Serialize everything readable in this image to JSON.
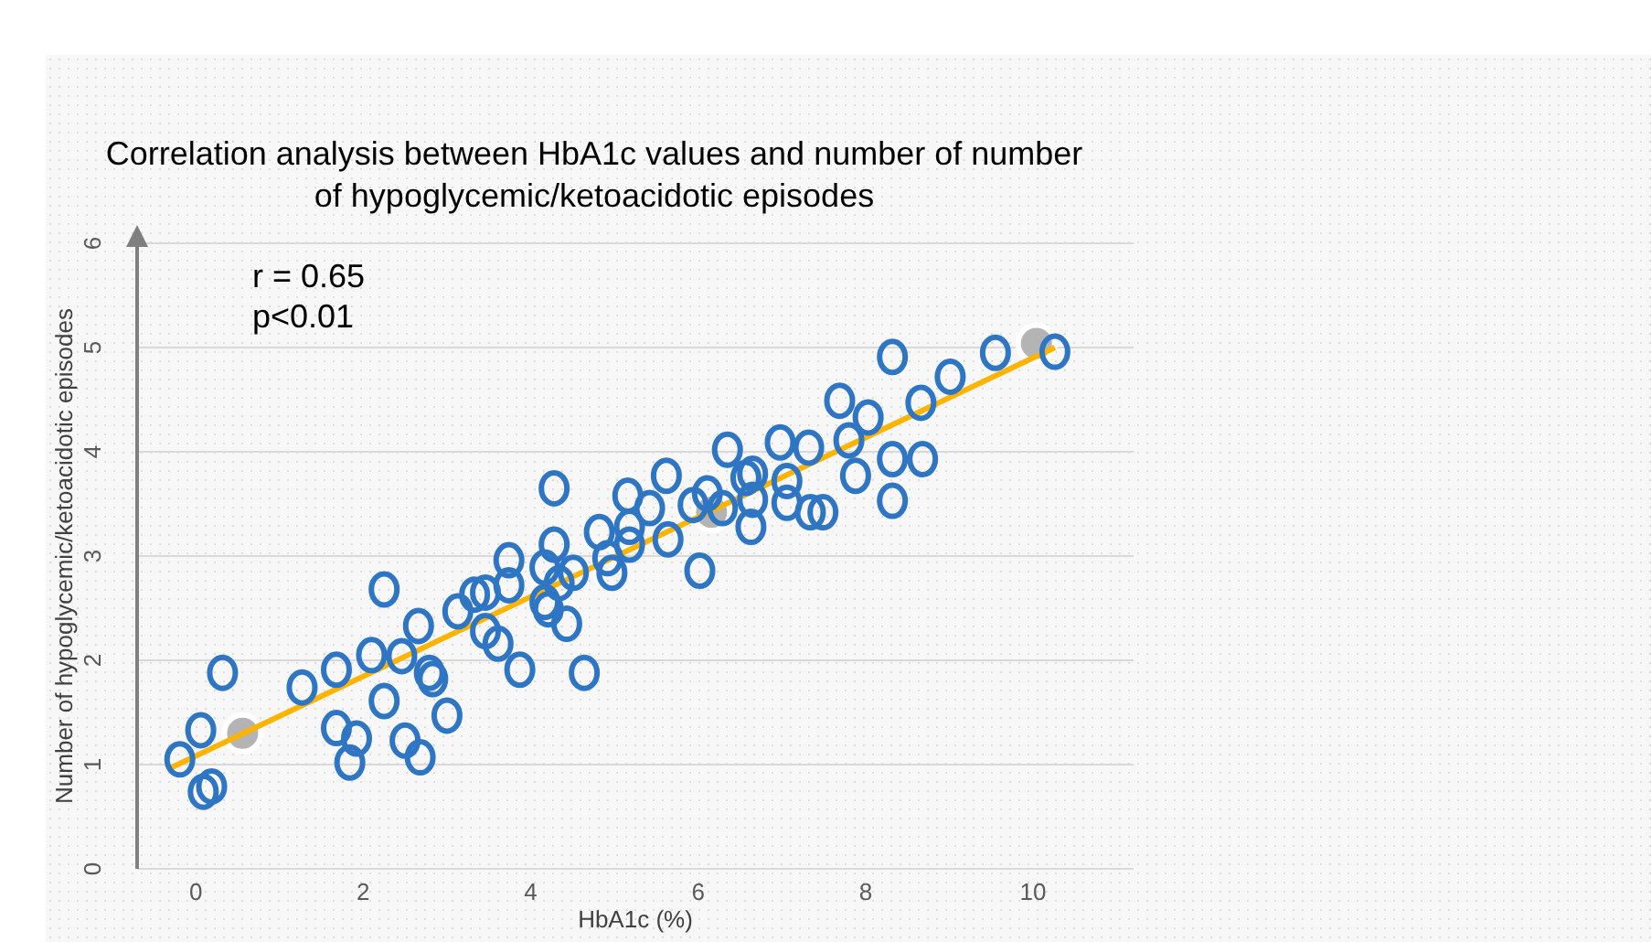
{
  "chart_data": {
    "type": "scatter",
    "title": "Correlation analysis between HbA1c values and number of number of hypoglycemic/ketoacidotic episodes",
    "xlabel": "HbA1c (%)",
    "ylabel": "Number of hypoglycemic/ketoacidotic episodes",
    "annotations": [
      "r = 0.65",
      "p<0.01"
    ],
    "xlim": [
      -0.7,
      11.2
    ],
    "ylim": [
      0,
      6
    ],
    "xticks": [
      0,
      2,
      4,
      6,
      8,
      10
    ],
    "yticks": [
      0,
      1,
      2,
      3,
      4,
      5,
      6
    ],
    "grid": "y",
    "legend": false,
    "marker": "circle",
    "series": [
      {
        "color": "#2e75c4",
        "x": [
          -0.19,
          0.06,
          0.09,
          0.19,
          0.32,
          1.27,
          1.68,
          1.68,
          1.84,
          1.92,
          2.1,
          2.25,
          2.25,
          2.46,
          2.5,
          2.66,
          2.68,
          2.79,
          2.83,
          3.0,
          3.13,
          3.33,
          3.46,
          3.46,
          3.61,
          3.74,
          3.74,
          3.87,
          4.17,
          4.17,
          4.21,
          4.28,
          4.28,
          4.43,
          4.34,
          4.51,
          4.64,
          4.82,
          4.92,
          4.97,
          5.18,
          5.16,
          5.18,
          5.42,
          5.62,
          5.64,
          6.02,
          5.94,
          6.11,
          6.29,
          6.35,
          6.57,
          6.65,
          6.63,
          6.65,
          6.98,
          7.06,
          7.06,
          7.32,
          7.34,
          7.49,
          7.69,
          7.8,
          7.88,
          8.03,
          8.32,
          8.32,
          8.32,
          8.66,
          8.68,
          9.01,
          9.55,
          10.26
        ],
        "values": [
          1.05,
          1.33,
          0.74,
          0.79,
          1.88,
          1.74,
          1.91,
          1.35,
          1.02,
          1.25,
          2.05,
          2.68,
          1.61,
          2.04,
          1.23,
          2.33,
          1.07,
          1.88,
          1.82,
          1.47,
          2.47,
          2.63,
          2.65,
          2.28,
          2.16,
          2.96,
          2.72,
          1.91,
          2.56,
          2.89,
          2.49,
          3.65,
          3.11,
          2.35,
          2.74,
          2.84,
          1.88,
          3.23,
          2.98,
          2.84,
          3.11,
          3.58,
          3.28,
          3.46,
          3.77,
          3.16,
          2.86,
          3.49,
          3.6,
          3.46,
          4.02,
          3.75,
          3.79,
          3.28,
          3.54,
          4.09,
          3.72,
          3.51,
          4.04,
          3.42,
          3.42,
          4.49,
          4.11,
          3.77,
          4.33,
          4.91,
          3.93,
          3.53,
          4.47,
          3.93,
          4.72,
          4.95,
          4.96
        ]
      },
      {
        "color": "#b4b4b4",
        "x": [
          0.56,
          6.16,
          10.04
        ],
        "values": [
          1.3,
          3.42,
          5.04
        ]
      },
      {
        "type": "line",
        "color": "#ffb400",
        "marker": "none",
        "x": [
          -0.32,
          10.26
        ],
        "values": [
          0.96,
          5.0
        ]
      }
    ]
  }
}
